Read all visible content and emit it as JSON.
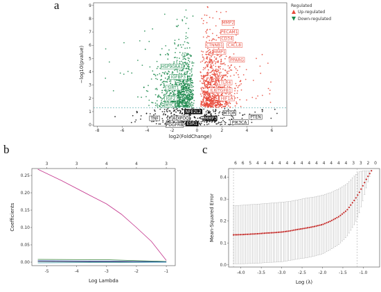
{
  "panel_letters": {
    "a": "a",
    "b": "b",
    "c": "c"
  },
  "chart_data": [
    {
      "type": "scatter",
      "panel": "a",
      "xlabel": "log2(FoldChange)",
      "ylabel": "−log10(pvalue)",
      "xlim": [
        -8.3,
        7.2
      ],
      "ylim": [
        -0.1,
        9.2
      ],
      "xticks": [
        "-8",
        "-6",
        "-4",
        "-2",
        "0",
        "2",
        "4",
        "6"
      ],
      "yticks": [
        "0",
        "1",
        "2",
        "3",
        "4",
        "5",
        "6",
        "7",
        "8",
        "9"
      ],
      "threshold_y": 1.3,
      "legend": {
        "title": "Regulated",
        "placement": "right",
        "items": [
          {
            "label": "Up-regulated",
            "color": "#e8493a",
            "marker": "triangle-up"
          },
          {
            "label": "Down-regulated",
            "color": "#1d8a4e",
            "marker": "triangle-down"
          }
        ]
      },
      "labels_up": [
        {
          "name": "MMP2",
          "x": 2.5,
          "y": 7.7
        },
        {
          "name": "PECAM1",
          "x": 2.6,
          "y": 7.0
        },
        {
          "name": "CD34",
          "x": 2.4,
          "y": 6.5
        },
        {
          "name": "CTNNB1",
          "x": 1.4,
          "y": 6.0
        },
        {
          "name": "CXCL8",
          "x": 3.0,
          "y": 6.0
        },
        {
          "name": "MMP1",
          "x": 1.8,
          "y": 5.5
        },
        {
          "name": "PPARG",
          "x": 3.2,
          "y": 4.9
        },
        {
          "name": "TLR4",
          "x": 2.3,
          "y": 3.2
        },
        {
          "name": "IL6",
          "x": 1.3,
          "y": 2.6
        },
        {
          "name": "TGFB1",
          "x": 2.2,
          "y": 2.6
        },
        {
          "name": "HIF1A",
          "x": 2.4,
          "y": 2.0
        }
      ],
      "labels_down": [
        {
          "name": "HSP90AA1",
          "x": -2.0,
          "y": 4.4
        },
        {
          "name": "IGFBP3",
          "x": -1.5,
          "y": 3.6
        },
        {
          "name": "SIRT1",
          "x": -1.9,
          "y": 2.8
        },
        {
          "name": "IGF2",
          "x": -2.1,
          "y": 2.0
        },
        {
          "name": "MYC",
          "x": -2.2,
          "y": 1.5
        }
      ],
      "labels_ns": [
        {
          "name": "NFE2L2",
          "x": -0.3,
          "y": 1.0
        },
        {
          "name": "MTOR",
          "x": 2.6,
          "y": 0.9
        },
        {
          "name": "PTEN",
          "x": 4.7,
          "y": 0.6
        },
        {
          "name": "TNF",
          "x": -3.4,
          "y": 0.5
        },
        {
          "name": "ADIPOQ",
          "x": -1.3,
          "y": 0.5
        },
        {
          "name": "MMP3",
          "x": 1.1,
          "y": 0.5
        },
        {
          "name": "PIK3CA",
          "x": 3.4,
          "y": 0.2
        },
        {
          "name": "PDGFRB",
          "x": -1.8,
          "y": 0.0
        },
        {
          "name": "ESR1",
          "x": -0.4,
          "y": 0.1
        }
      ]
    },
    {
      "type": "line",
      "panel": "b",
      "xlabel": "Log Lambda",
      "ylabel": "Coefficients",
      "xlim": [
        -5.5,
        -0.7
      ],
      "ylim": [
        -0.01,
        0.27
      ],
      "xticks": [
        "-5",
        "-4",
        "-3",
        "-2",
        "-1"
      ],
      "yticks": [
        "0.00",
        "0.05",
        "0.10",
        "0.15",
        "0.20",
        "0.25"
      ],
      "top_ticks": [
        {
          "x": -5.0,
          "label": "3"
        },
        {
          "x": -4.0,
          "label": "3"
        },
        {
          "x": -3.0,
          "label": "4"
        },
        {
          "x": -2.0,
          "label": "4"
        },
        {
          "x": -1.0,
          "label": "3"
        }
      ],
      "series": [
        {
          "color": "#c2308a",
          "x": [
            -5.3,
            -4.5,
            -3.5,
            -3.0,
            -2.5,
            -2.0,
            -1.5,
            -1.0
          ],
          "values": [
            0.268,
            0.235,
            0.19,
            0.168,
            0.138,
            0.1,
            0.06,
            0.005
          ]
        },
        {
          "color": "#2e7d32",
          "x": [
            -5.3,
            -3.0,
            -1.0
          ],
          "values": [
            0.008,
            0.007,
            0.002
          ]
        },
        {
          "color": "#1f3fbf",
          "x": [
            -5.3,
            -3.0,
            -1.0
          ],
          "values": [
            0.004,
            0.003,
            0.001
          ]
        },
        {
          "color": "#222222",
          "x": [
            -5.3,
            -3.0,
            -1.0
          ],
          "values": [
            0.002,
            0.001,
            0.0
          ]
        },
        {
          "color": "#3aa6b9",
          "x": [
            -5.3,
            -3.0,
            -1.0
          ],
          "values": [
            -0.002,
            -0.001,
            0.0
          ]
        }
      ]
    },
    {
      "type": "scatter",
      "panel": "c",
      "xlabel": "Log (λ)",
      "ylabel": "Mean-Squared Error",
      "xlim": [
        -4.3,
        -0.6
      ],
      "ylim": [
        -0.01,
        0.44
      ],
      "xticks": [
        "-4.0",
        "-3.5",
        "-3.0",
        "-2.5",
        "-2.0",
        "-1.5",
        "-1.0"
      ],
      "yticks": [
        "0.0",
        "0.1",
        "0.2",
        "0.3",
        "0.4"
      ],
      "top_labels": [
        "6",
        "6",
        "5",
        "4",
        "4",
        "4",
        "4",
        "4",
        "4",
        "4",
        "4",
        "4",
        "4",
        "4",
        "4",
        "4",
        "3",
        "3",
        "2",
        "0"
      ],
      "vlines": [
        -4.18,
        -1.15
      ],
      "x": [
        -4.18,
        -4.0,
        -3.8,
        -3.6,
        -3.4,
        -3.2,
        -3.0,
        -2.8,
        -2.6,
        -2.4,
        -2.2,
        -2.0,
        -1.8,
        -1.6,
        -1.4,
        -1.3,
        -1.2,
        -1.1,
        -1.0,
        -0.9,
        -0.8
      ],
      "values": [
        0.137,
        0.138,
        0.14,
        0.142,
        0.145,
        0.147,
        0.15,
        0.155,
        0.162,
        0.168,
        0.175,
        0.184,
        0.2,
        0.22,
        0.25,
        0.275,
        0.3,
        0.33,
        0.365,
        0.4,
        0.43
      ],
      "upper": [
        0.27,
        0.272,
        0.275,
        0.277,
        0.28,
        0.283,
        0.286,
        0.29,
        0.297,
        0.305,
        0.31,
        0.318,
        0.33,
        0.347,
        0.37,
        0.39,
        0.41,
        0.425,
        0.43,
        0.43,
        0.43
      ],
      "lower": [
        0.005,
        0.005,
        0.006,
        0.007,
        0.01,
        0.012,
        0.014,
        0.02,
        0.027,
        0.032,
        0.04,
        0.05,
        0.07,
        0.093,
        0.13,
        0.16,
        0.19,
        0.235,
        0.3,
        0.37,
        0.43
      ],
      "point_color": "#c0211f",
      "bar_color": "#9a9a9a"
    }
  ]
}
